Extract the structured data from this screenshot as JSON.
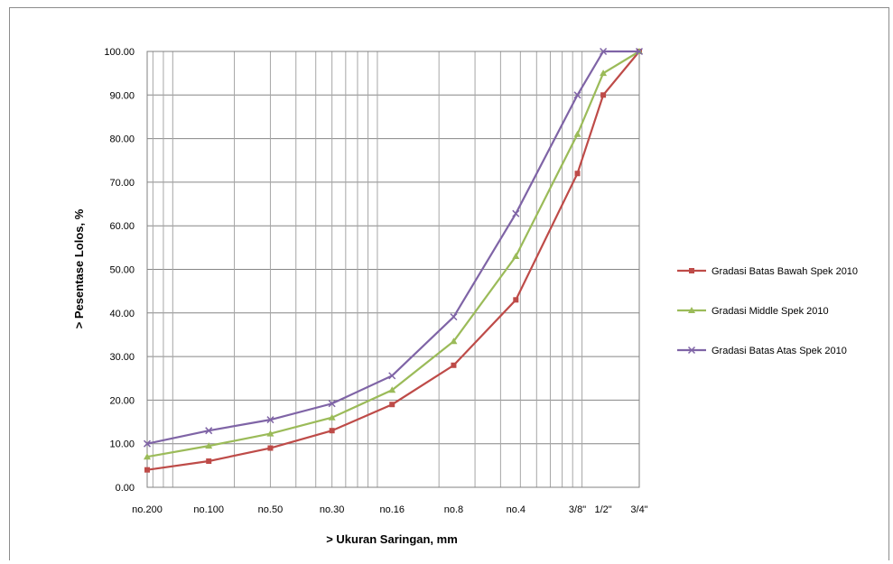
{
  "chart_data": {
    "type": "line",
    "xlabel": "> Ukuran Saringan, mm",
    "ylabel": "> Pesentase Lolos, %",
    "x_scale": "log",
    "x_unit": "mm",
    "xlim": [
      0.075,
      19.05
    ],
    "ylim": [
      0,
      100
    ],
    "y_ticks": [
      "0.00",
      "10.00",
      "20.00",
      "30.00",
      "40.00",
      "50.00",
      "60.00",
      "70.00",
      "80.00",
      "90.00",
      "100.00"
    ],
    "y_tick_values": [
      0,
      10,
      20,
      30,
      40,
      50,
      60,
      70,
      80,
      90,
      100
    ],
    "sieves": [
      "no.200",
      "no.100",
      "no.50",
      "no.30",
      "no.16",
      "no.8",
      "no.4",
      "3/8\"",
      "1/2\"",
      "3/4\""
    ],
    "sieve_sizes": [
      0.075,
      0.15,
      0.3,
      0.6,
      1.18,
      2.36,
      4.75,
      9.5,
      12.7,
      19.05
    ],
    "grid": true,
    "legend_position": "right",
    "series": [
      {
        "name": "Gradasi Batas Bawah Spek 2010",
        "color": "#be4b48",
        "marker": "square",
        "values": [
          4,
          6,
          9,
          13,
          19,
          28,
          43,
          72,
          90,
          100
        ]
      },
      {
        "name": "Gradasi Middle Spek 2010",
        "color": "#9bbb59",
        "marker": "triangle",
        "values": [
          7,
          9.5,
          12.3,
          16,
          22.3,
          33.5,
          53,
          81,
          95,
          100
        ]
      },
      {
        "name": "Gradasi Batas Atas Spek 2010",
        "color": "#7f64a6",
        "marker": "x",
        "values": [
          10,
          13,
          15.5,
          19.2,
          25.6,
          39.1,
          62.8,
          90,
          100,
          100
        ]
      }
    ]
  }
}
